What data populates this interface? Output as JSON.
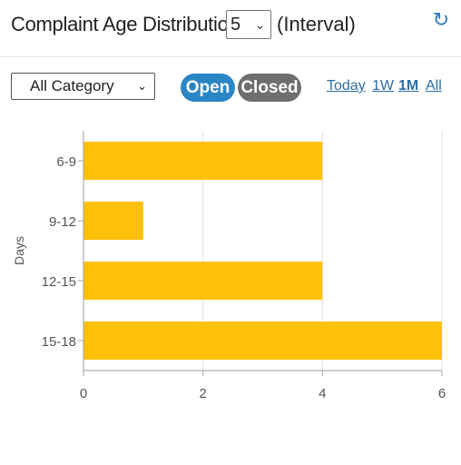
{
  "header": {
    "title": "Complaint Age Distribution",
    "interval_value": "5",
    "interval_suffix": "(Interval)",
    "refresh_icon": "refresh-icon"
  },
  "filters": {
    "category_value": "All Category",
    "status_open": "Open",
    "status_closed": "Closed",
    "ranges": [
      "Today",
      "1W",
      "1M",
      "All"
    ],
    "active_range": "1M"
  },
  "colors": {
    "bar": "#FFC107",
    "open_pill": "#2B86C5",
    "closed_pill": "#6E6E6E",
    "link": "#2B6EA5"
  },
  "chart_data": {
    "type": "bar",
    "orientation": "horizontal",
    "categories": [
      "6-9",
      "9-12",
      "12-15",
      "15-18"
    ],
    "values": [
      4,
      1,
      4,
      6
    ],
    "title": "",
    "xlabel": "",
    "ylabel": "Days",
    "xlim": [
      0,
      6
    ],
    "xticks": [
      0,
      2,
      4,
      6
    ],
    "grid": true,
    "legend": "none"
  }
}
